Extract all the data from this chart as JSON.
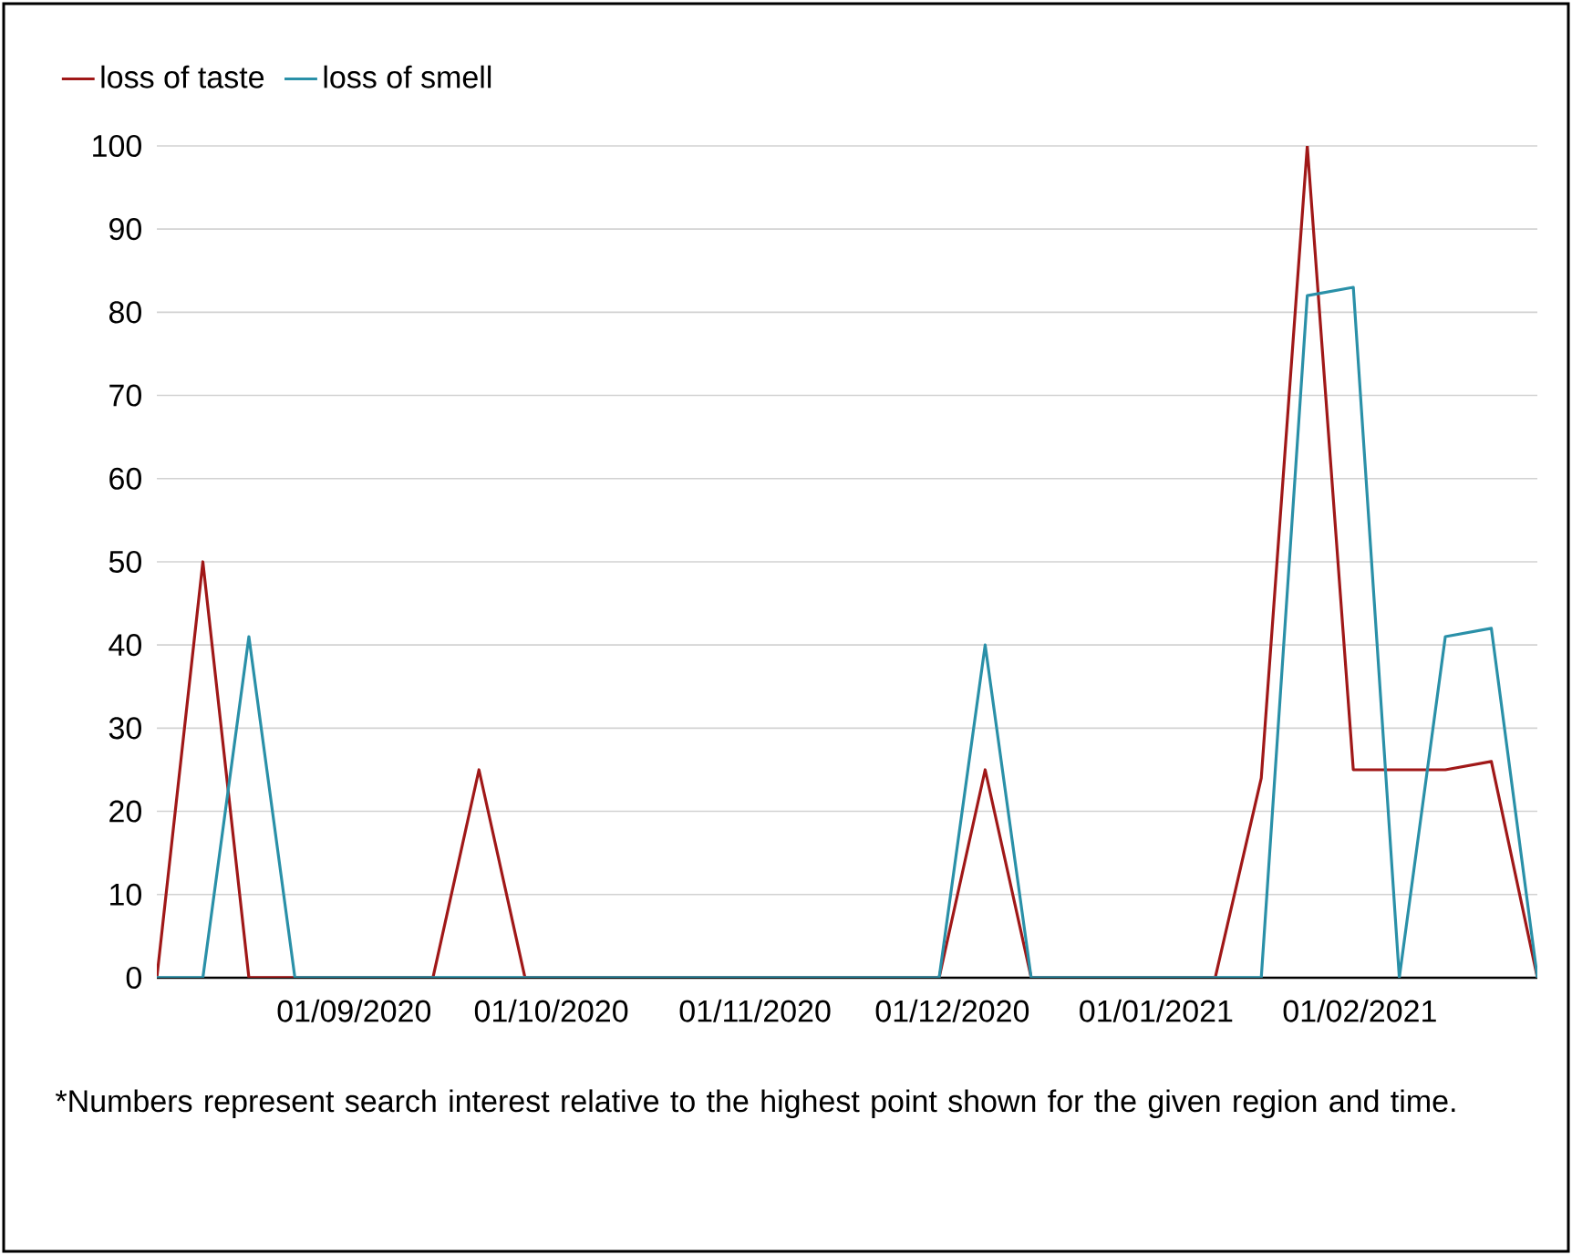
{
  "chart_data": {
    "type": "line",
    "x": [
      "2020-08-02",
      "2020-08-09",
      "2020-08-16",
      "2020-08-23",
      "2020-08-30",
      "2020-09-06",
      "2020-09-13",
      "2020-09-20",
      "2020-09-27",
      "2020-10-04",
      "2020-10-11",
      "2020-10-18",
      "2020-10-25",
      "2020-11-01",
      "2020-11-08",
      "2020-11-15",
      "2020-11-22",
      "2020-11-29",
      "2020-12-06",
      "2020-12-13",
      "2020-12-20",
      "2020-12-27",
      "2021-01-03",
      "2021-01-10",
      "2021-01-17",
      "2021-01-24",
      "2021-01-31",
      "2021-02-07",
      "2021-02-14",
      "2021-02-21",
      "2021-02-28"
    ],
    "series": [
      {
        "name": "loss of taste",
        "color": "#a01818",
        "values": [
          0,
          50,
          0,
          0,
          0,
          0,
          0,
          25,
          0,
          0,
          0,
          0,
          0,
          0,
          0,
          0,
          0,
          0,
          25,
          0,
          0,
          0,
          0,
          0,
          24,
          100,
          25,
          25,
          25,
          26,
          0
        ]
      },
      {
        "name": "loss of smell",
        "color": "#2a90a8",
        "values": [
          0,
          0,
          41,
          0,
          0,
          0,
          0,
          0,
          0,
          0,
          0,
          0,
          0,
          0,
          0,
          0,
          0,
          0,
          40,
          0,
          0,
          0,
          0,
          0,
          0,
          82,
          83,
          0,
          41,
          42,
          0
        ]
      }
    ],
    "xlim": [
      "2020-08-02",
      "2021-02-28"
    ],
    "xticks": [
      {
        "value": "2020-09-01",
        "label": "01/09/2020"
      },
      {
        "value": "2020-10-01",
        "label": "01/10/2020"
      },
      {
        "value": "2020-11-01",
        "label": "01/11/2020"
      },
      {
        "value": "2020-12-01",
        "label": "01/12/2020"
      },
      {
        "value": "2021-01-01",
        "label": "01/01/2021"
      },
      {
        "value": "2021-02-01",
        "label": "01/02/2021"
      }
    ],
    "ylim": [
      0,
      100
    ],
    "yticks": [
      0,
      10,
      20,
      30,
      40,
      50,
      60,
      70,
      80,
      90,
      100
    ],
    "grid": "y",
    "legend": "top left",
    "line_style": "solid",
    "marker": "none",
    "annotations": [
      "*Numbers represent search interest relative to the highest point shown for the given region and time."
    ]
  }
}
